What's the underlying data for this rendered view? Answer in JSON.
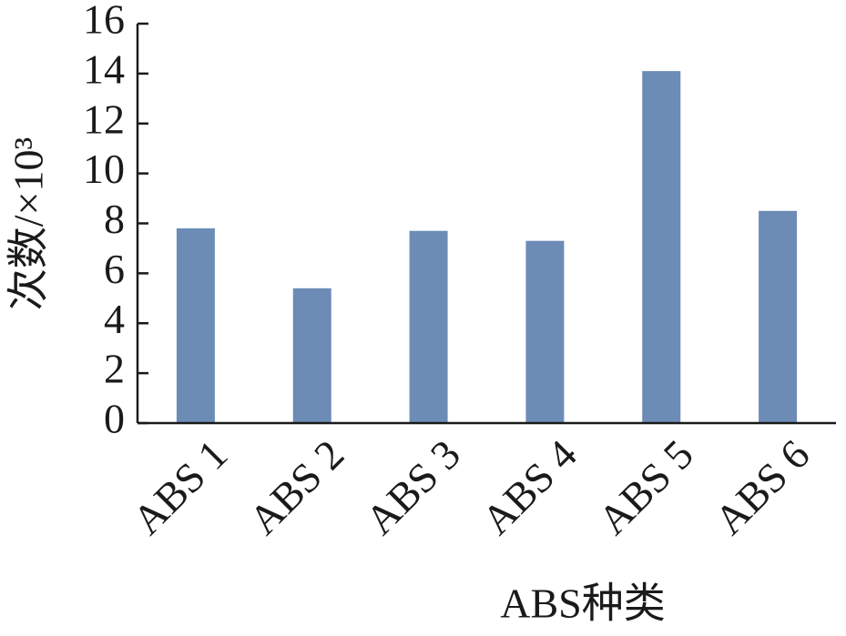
{
  "chart_data": {
    "type": "bar",
    "x_label": "ABS种类",
    "y_label": "次数/×10³",
    "categories": [
      "ABS 1",
      "ABS 2",
      "ABS 3",
      "ABS 4",
      "ABS 5",
      "ABS 6"
    ],
    "values": [
      7.8,
      5.4,
      7.7,
      7.3,
      14.1,
      8.5
    ],
    "color": "#6c8cb6",
    "ylim": [
      0,
      16
    ],
    "yticks": [
      0,
      2,
      4,
      6,
      8,
      10,
      12,
      14,
      16
    ],
    "grid": false
  }
}
